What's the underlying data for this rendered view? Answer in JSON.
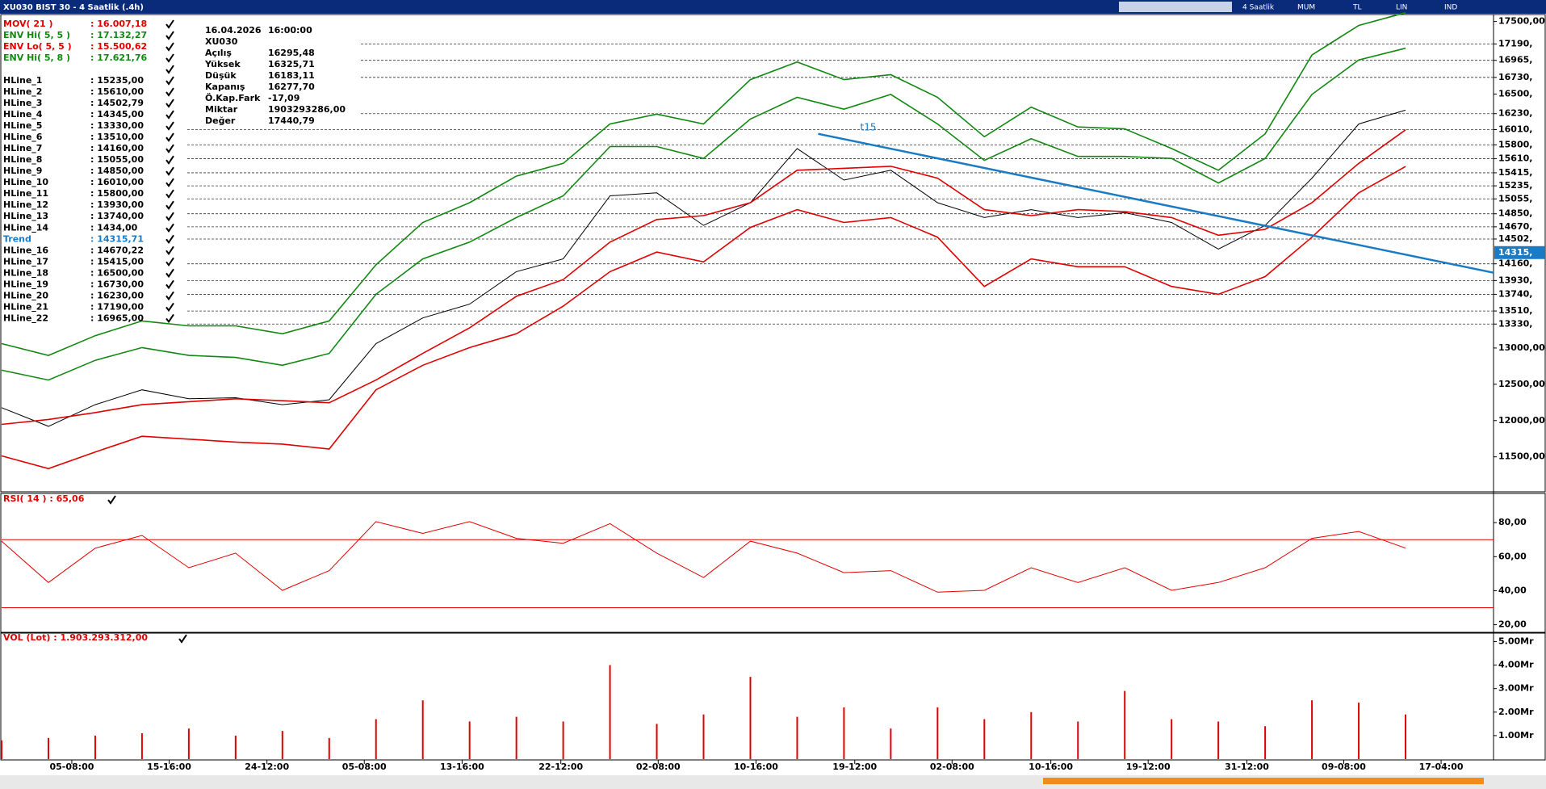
{
  "window": {
    "title": "XU030 BIST 30 - 4 Saatlik (.4h)",
    "toolbar": [
      "4 Saatlik",
      "MUM",
      "TL",
      "LIN",
      "IND"
    ]
  },
  "info": {
    "date": "16.04.2026",
    "time": "16:00:00",
    "symbol": "XU030",
    "rows": [
      [
        "Açılış",
        "16295,48"
      ],
      [
        "Yüksek",
        "16325,71"
      ],
      [
        "Düşük",
        "16183,11"
      ],
      [
        "Kapanış",
        "16277,70"
      ],
      [
        "Ö.Kap.Fark",
        "-17,09"
      ],
      [
        "Miktar",
        "1903293286,00"
      ],
      [
        "Değer",
        "17440,79"
      ]
    ]
  },
  "chart_data": [
    {
      "type": "line",
      "x": [
        0,
        1,
        2,
        3,
        4,
        5,
        6,
        7,
        8,
        9,
        10,
        11,
        12,
        13,
        14,
        15,
        16,
        17,
        18,
        19,
        20,
        21,
        22,
        23,
        24,
        25,
        26,
        27,
        28,
        29,
        30
      ],
      "xlim": [
        0,
        31.88
      ],
      "ylim": [
        11040,
        17596
      ],
      "series": [
        {
          "color": "#000000",
          "values": [
            12178,
            11920,
            12219,
            12423,
            12300,
            12314,
            12219,
            12287,
            13060,
            13414,
            13604,
            14052,
            14228,
            15097,
            15138,
            14690,
            15002,
            15749,
            15314,
            15450,
            15002,
            14798,
            14907,
            14798,
            14866,
            14730,
            14364,
            14690,
            15341,
            16088,
            16278
          ]
        },
        {
          "name": "MOV( 21 )",
          "last": ": 16.007,18",
          "color": "#e00000",
          "values": [
            11947,
            12015,
            12110,
            12219,
            12260,
            12300,
            12273,
            12246,
            12558,
            12925,
            13278,
            13712,
            13943,
            14459,
            14771,
            14825,
            15002,
            15450,
            15477,
            15504,
            15341,
            14907,
            14825,
            14907,
            14880,
            14798,
            14554,
            14635,
            15002,
            15545,
            16007
          ]
        },
        {
          "name": "ENV Hi( 5, 5 )",
          "last": ": 17.132,27",
          "color": "#118811",
          "values": [
            12694,
            12558,
            12830,
            13006,
            12898,
            12870,
            12762,
            12925,
            13740,
            14228,
            14459,
            14798,
            15097,
            15776,
            15776,
            15613,
            16156,
            16455,
            16292,
            16495,
            16088,
            15586,
            15884,
            15640,
            15640,
            15613,
            15274,
            15613,
            16495,
            16971,
            17132
          ]
        },
        {
          "name": "ENV Lo( 5, 5 )",
          "last": ": 15.500,62",
          "color": "#e00000",
          "values": [
            11513,
            11337,
            11567,
            11784,
            11744,
            11703,
            11676,
            11608,
            12423,
            12762,
            13006,
            13196,
            13577,
            14052,
            14323,
            14187,
            14662,
            14907,
            14730,
            14798,
            14527,
            13848,
            14228,
            14120,
            14120,
            13848,
            13740,
            13984,
            14527,
            15138,
            15501
          ]
        },
        {
          "name": "ENV Hi( 5, 8 )",
          "last": ": 17.621,76",
          "color": "#118811",
          "values": [
            13060,
            12898,
            13169,
            13373,
            13305,
            13305,
            13196,
            13373,
            14147,
            14730,
            15002,
            15369,
            15545,
            16088,
            16224,
            16088,
            16699,
            16943,
            16699,
            16767,
            16455,
            15912,
            16319,
            16047,
            16020,
            15749,
            15450,
            15952,
            17038,
            17446,
            17622
          ]
        }
      ],
      "hlines": [
        {
          "name": "HLine_1",
          "label": ": 15235,00"
        },
        {
          "name": "HLine_2",
          "label": ": 15610,00"
        },
        {
          "name": "HLine_3",
          "label": ": 14502,79"
        },
        {
          "name": "HLine_4",
          "label": ": 14345,00"
        },
        {
          "name": "HLine_5",
          "label": ": 13330,00"
        },
        {
          "name": "HLine_6",
          "label": ": 13510,00"
        },
        {
          "name": "HLine_7",
          "label": ": 14160,00"
        },
        {
          "name": "HLine_8",
          "label": ": 15055,00"
        },
        {
          "name": "HLine_9",
          "label": ": 14850,00"
        },
        {
          "name": "HLine_10",
          "label": ": 16010,00"
        },
        {
          "name": "HLine_11",
          "label": ": 15800,00"
        },
        {
          "name": "HLine_12",
          "label": ": 13930,00"
        },
        {
          "name": "HLine_13",
          "label": ": 13740,00"
        },
        {
          "name": "HLine_14",
          "label": ": 1434,00"
        },
        {
          "name": "HLine_16",
          "label": ": 14670,22"
        },
        {
          "name": "HLine_17",
          "label": ": 15415,00"
        },
        {
          "name": "HLine_18",
          "label": ": 16500,00"
        },
        {
          "name": "HLine_19",
          "label": ": 16730,00"
        },
        {
          "name": "HLine_20",
          "label": ": 16230,00"
        },
        {
          "name": "HLine_21",
          "label": ": 17190,00"
        },
        {
          "name": "HLine_22",
          "label": ": 16965,00"
        }
      ],
      "trend": {
        "name": "Trend",
        "label": ": 14315,71",
        "text": "t15",
        "color": "#1a7ac4",
        "x": [
          17.45,
          31.88
        ],
        "values": [
          15952,
          14038
        ],
        "axis_value": {
          "value": 14315,
          "label": "14315,"
        }
      },
      "yticks": [
        {
          "value": 17500,
          "label": "17500,00"
        },
        {
          "value": 17190,
          "label": "17190,"
        },
        {
          "value": 16965,
          "label": "16965,"
        },
        {
          "value": 16730,
          "label": "16730,"
        },
        {
          "value": 16500,
          "label": "16500,"
        },
        {
          "value": 16230,
          "label": "16230,"
        },
        {
          "value": 16010,
          "label": "16010,"
        },
        {
          "value": 15800,
          "label": "15800,"
        },
        {
          "value": 15610,
          "label": "15610,"
        },
        {
          "value": 15415,
          "label": "15415,"
        },
        {
          "value": 15235,
          "label": "15235,"
        },
        {
          "value": 15055,
          "label": "15055,"
        },
        {
          "value": 14850,
          "label": "14850,"
        },
        {
          "value": 14670,
          "label": "14670,"
        },
        {
          "value": 14502,
          "label": "14502,"
        },
        {
          "value": 14160,
          "label": "14160,"
        },
        {
          "value": 13930,
          "label": "13930,"
        },
        {
          "value": 13740,
          "label": "13740,"
        },
        {
          "value": 13510,
          "label": "13510,"
        },
        {
          "value": 13330,
          "label": "13330,"
        },
        {
          "value": 13000,
          "label": "13000,00"
        },
        {
          "value": 12500,
          "label": "12500,00"
        },
        {
          "value": 12000,
          "label": "12000,00"
        },
        {
          "value": 11500,
          "label": "11500,00"
        }
      ]
    },
    {
      "type": "line",
      "title": "RSI( 14 ) : 65,06",
      "x": [
        0,
        1,
        2,
        3,
        4,
        5,
        6,
        7,
        8,
        9,
        10,
        11,
        12,
        13,
        14,
        15,
        16,
        17,
        18,
        19,
        20,
        21,
        22,
        23,
        24,
        25,
        26,
        27,
        28,
        29,
        30
      ],
      "xlim": [
        0,
        31.88
      ],
      "ylim": [
        16,
        96.7
      ],
      "levels": [
        70,
        30
      ],
      "color": "#e00000",
      "values": [
        69.1,
        44.8,
        65.0,
        72.5,
        53.5,
        62.1,
        40.2,
        51.8,
        80.6,
        73.7,
        80.6,
        70.8,
        67.9,
        79.4,
        62.1,
        47.7,
        69.1,
        62.1,
        50.6,
        51.8,
        39.1,
        40.2,
        53.5,
        44.8,
        53.5,
        40.2,
        44.8,
        53.5,
        70.8,
        74.8,
        65.06
      ],
      "yticks": [
        {
          "value": 80,
          "label": "80,00"
        },
        {
          "value": 60,
          "label": "60,00"
        },
        {
          "value": 40,
          "label": "40,00"
        },
        {
          "value": 20,
          "label": "20,00"
        }
      ]
    },
    {
      "type": "bar",
      "title": "VOL (Lot) : 1.903.293.312,00",
      "x": [
        0,
        1,
        2,
        3,
        4,
        5,
        6,
        7,
        8,
        9,
        10,
        11,
        12,
        13,
        14,
        15,
        16,
        17,
        18,
        19,
        20,
        21,
        22,
        23,
        24,
        25,
        26,
        27,
        28,
        29,
        30
      ],
      "xlim": [
        0,
        31.88
      ],
      "ylim": [
        0,
        5.36
      ],
      "color": "#e00000",
      "values": [
        0.8,
        0.9,
        1.0,
        1.1,
        1.3,
        1.0,
        1.2,
        0.9,
        1.7,
        2.5,
        1.6,
        1.8,
        1.6,
        4.0,
        1.5,
        1.9,
        3.5,
        1.8,
        2.2,
        1.3,
        2.2,
        1.7,
        2.0,
        1.6,
        2.9,
        1.7,
        1.6,
        1.4,
        2.5,
        2.4,
        1.9
      ],
      "yticks": [
        {
          "value": 5,
          "label": "5.00Mr"
        },
        {
          "value": 4,
          "label": "4.00Mr"
        },
        {
          "value": 3,
          "label": "3.00Mr"
        },
        {
          "value": 2,
          "label": "2.00Mr"
        },
        {
          "value": 1,
          "label": "1.00Mr"
        }
      ],
      "xticks": [
        {
          "value": 1.5,
          "label": "05-08:00"
        },
        {
          "value": 3.58,
          "label": "15-16:00"
        },
        {
          "value": 5.67,
          "label": "24-12:00"
        },
        {
          "value": 7.75,
          "label": "05-08:00"
        },
        {
          "value": 9.84,
          "label": "13-16:00"
        },
        {
          "value": 11.95,
          "label": "22-12:00"
        },
        {
          "value": 14.03,
          "label": "02-08:00"
        },
        {
          "value": 16.12,
          "label": "10-16:00"
        },
        {
          "value": 18.23,
          "label": "19-12:00"
        },
        {
          "value": 20.31,
          "label": "02-08:00"
        },
        {
          "value": 22.42,
          "label": "10-16:00"
        },
        {
          "value": 24.5,
          "label": "19-12:00"
        },
        {
          "value": 26.61,
          "label": "31-12:00"
        },
        {
          "value": 28.68,
          "label": "09-08:00"
        },
        {
          "value": 30.76,
          "label": "17-04:00"
        }
      ]
    }
  ]
}
